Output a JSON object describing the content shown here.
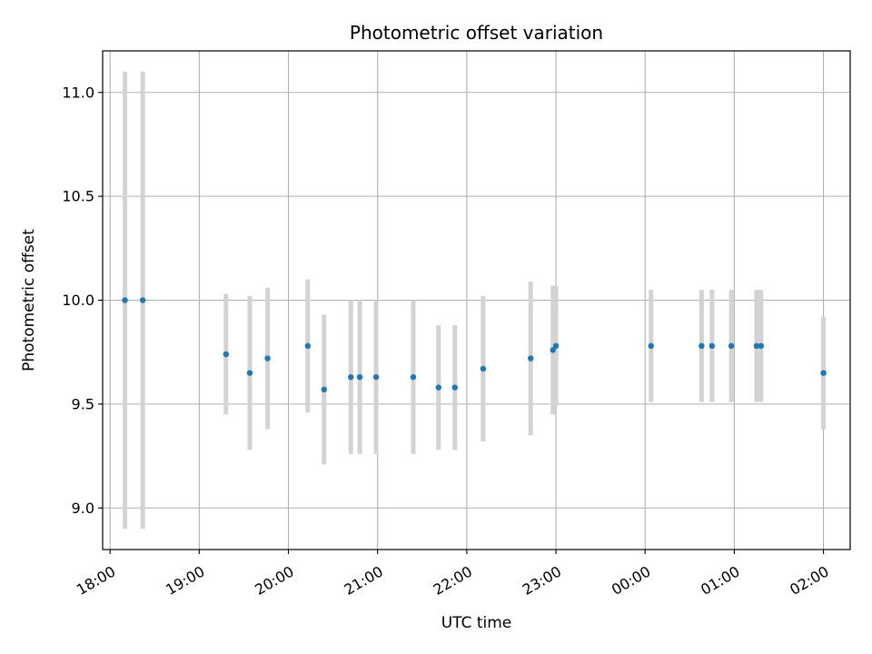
{
  "chart_data": {
    "type": "scatter",
    "title": "Photometric offset variation",
    "xlabel": "UTC time",
    "ylabel": "Photometric offset",
    "xlim": [
      "17:55",
      "02:18"
    ],
    "ylim": [
      8.8,
      11.2
    ],
    "x_ticks": [
      "18:00",
      "19:00",
      "20:00",
      "21:00",
      "22:00",
      "23:00",
      "00:00",
      "01:00",
      "02:00"
    ],
    "y_ticks": [
      "9.0",
      "9.5",
      "10.0",
      "10.5",
      "11.0"
    ],
    "y_tick_values": [
      9.0,
      9.5,
      10.0,
      10.5,
      11.0
    ],
    "grid": true,
    "error_bars": true,
    "colors": {
      "marker": "#1f77b4",
      "errorbar": "#d3d3d3",
      "grid": "#b0b0b0"
    },
    "points": [
      {
        "x": "18:10",
        "y": 10.0,
        "yerr": 1.1
      },
      {
        "x": "18:22",
        "y": 10.0,
        "yerr": 1.1
      },
      {
        "x": "19:18",
        "y": 9.74,
        "yerr": 0.29
      },
      {
        "x": "19:34",
        "y": 9.65,
        "yerr": 0.37
      },
      {
        "x": "19:46",
        "y": 9.72,
        "yerr": 0.34
      },
      {
        "x": "20:13",
        "y": 9.78,
        "yerr": 0.32
      },
      {
        "x": "20:24",
        "y": 9.57,
        "yerr": 0.36
      },
      {
        "x": "20:42",
        "y": 9.63,
        "yerr": 0.37
      },
      {
        "x": "20:48",
        "y": 9.63,
        "yerr": 0.37
      },
      {
        "x": "20:59",
        "y": 9.63,
        "yerr": 0.37
      },
      {
        "x": "21:24",
        "y": 9.63,
        "yerr": 0.37
      },
      {
        "x": "21:41",
        "y": 9.58,
        "yerr": 0.3
      },
      {
        "x": "21:52",
        "y": 9.58,
        "yerr": 0.3
      },
      {
        "x": "22:11",
        "y": 9.67,
        "yerr": 0.35
      },
      {
        "x": "22:43",
        "y": 9.72,
        "yerr": 0.37
      },
      {
        "x": "22:58",
        "y": 9.76,
        "yerr": 0.31
      },
      {
        "x": "23:00",
        "y": 9.78,
        "yerr": 0.29
      },
      {
        "x": "00:04",
        "y": 9.78,
        "yerr": 0.27
      },
      {
        "x": "00:38",
        "y": 9.78,
        "yerr": 0.27
      },
      {
        "x": "00:45",
        "y": 9.78,
        "yerr": 0.27
      },
      {
        "x": "00:58",
        "y": 9.78,
        "yerr": 0.27
      },
      {
        "x": "01:15",
        "y": 9.78,
        "yerr": 0.27
      },
      {
        "x": "01:18",
        "y": 9.78,
        "yerr": 0.27
      },
      {
        "x": "02:00",
        "y": 9.65,
        "yerr": 0.27
      }
    ]
  }
}
